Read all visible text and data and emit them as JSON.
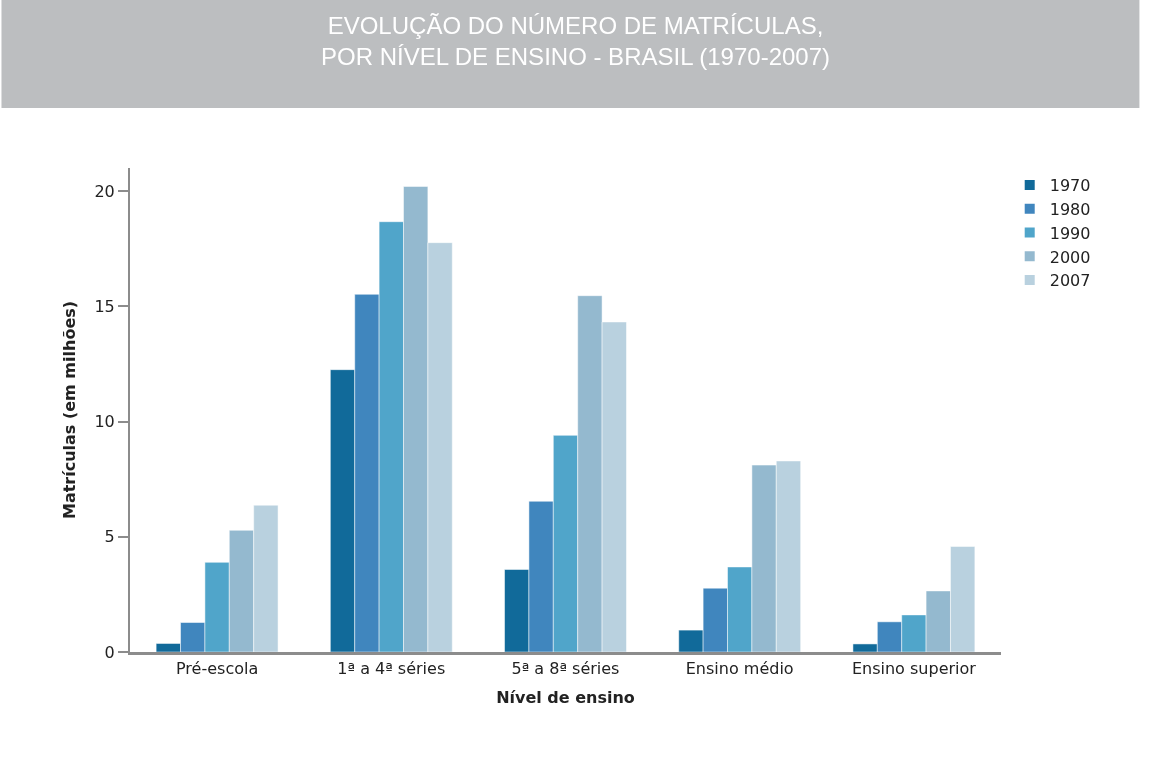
{
  "chart_data": {
    "type": "bar",
    "title": "EVOLUÇÃO DO NÚMERO DE MATRÍCULAS,\nPOR NÍVEL DE ENSINO - BRASIL (1970-2007)",
    "xlabel": "Nível de ensino",
    "ylabel": "Matrículas (em milhões)",
    "categories": [
      "Pré-escola",
      "1ª a 4ª séries",
      "5ª a 8ª séries",
      "Ensino médio",
      "Ensino superior"
    ],
    "series": [
      {
        "name": "1970",
        "color": "#116a9a",
        "values": [
          0.37,
          12.25,
          3.58,
          0.95,
          0.35
        ]
      },
      {
        "name": "1980",
        "color": "#4086be",
        "values": [
          1.28,
          15.52,
          6.54,
          2.77,
          1.31
        ]
      },
      {
        "name": "1990",
        "color": "#50a5ca",
        "values": [
          3.89,
          18.67,
          9.4,
          3.69,
          1.61
        ]
      },
      {
        "name": "2000",
        "color": "#94b9cf",
        "values": [
          5.28,
          20.2,
          15.46,
          8.11,
          2.65
        ]
      },
      {
        "name": "2007",
        "color": "#b9d1df",
        "values": [
          6.37,
          17.76,
          14.32,
          8.29,
          4.58
        ]
      }
    ],
    "ylim": [
      0,
      21
    ],
    "yticks": [
      0,
      5,
      10,
      15,
      20
    ],
    "legend": "top right"
  }
}
